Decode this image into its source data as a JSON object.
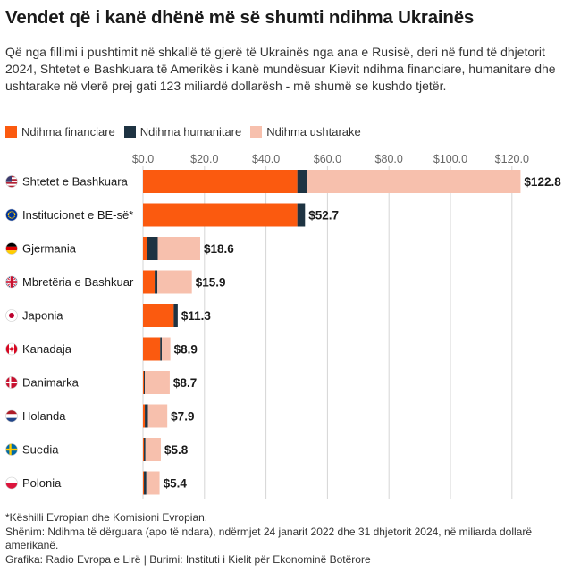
{
  "title": "Vendet që i kanë dhënë më së shumti ndihma Ukrainës",
  "subtitle": "Që nga fillimi i pushtimit në shkallë të gjerë të Ukrainës nga ana e Rusisë, deri në fund të dhjetorit 2024, Shtetet e Bashkuara të Amerikës i kanë mundësuar Kievit ndihma financiare, humanitare dhe ushtarake në vlerë prej gati 123 miliardë dollarësh - më shumë se kushdo tjetër.",
  "footer": {
    "note1": "*Këshilli Evropian dhe Komisioni Evropian.",
    "note2": "Shënim: Ndihma të dërguara (apo të ndara), ndërmjet 24 janarit 2022 dhe 31 dhjetorit 2024, në miliarda dollarë amerikanë.",
    "credit": "Grafika: Radio Evropa e Lirë | Burimi: Instituti i Kielit për Ekonominë Botërore"
  },
  "colors": {
    "financial": "#fb5a0f",
    "humanitarian": "#1e3342",
    "military": "#f7c0ad",
    "grid": "#d5d5d5",
    "text": "#1a1a1a",
    "tick": "#666666"
  },
  "chart_data": {
    "type": "bar",
    "orientation": "horizontal",
    "stacked": true,
    "xlim": [
      0,
      125
    ],
    "ticks": [
      0,
      20,
      40,
      60,
      80,
      100,
      120
    ],
    "tick_labels": [
      "$0.0",
      "$20.0",
      "$40.0",
      "$60.0",
      "$80.0",
      "$100.0",
      "$120.0"
    ],
    "legend": [
      "Ndihma financiare",
      "Ndihma humanitare",
      "Ndihma ushtarake"
    ],
    "legend_position": "top-left",
    "categories": [
      {
        "name": "Shtetet e Bashkuara",
        "flag": "us",
        "total_label": "$122.8"
      },
      {
        "name": "Institucionet e BE-së*",
        "flag": "eu",
        "total_label": "$52.7"
      },
      {
        "name": "Gjermania",
        "flag": "de",
        "total_label": "$18.6"
      },
      {
        "name": "Mbretëria e Bashkuar",
        "flag": "gb",
        "total_label": "$15.9"
      },
      {
        "name": "Japonia",
        "flag": "jp",
        "total_label": "$11.3"
      },
      {
        "name": "Kanadaja",
        "flag": "ca",
        "total_label": "$8.9"
      },
      {
        "name": "Danimarka",
        "flag": "dk",
        "total_label": "$8.7"
      },
      {
        "name": "Holanda",
        "flag": "nl",
        "total_label": "$7.9"
      },
      {
        "name": "Suedia",
        "flag": "se",
        "total_label": "$5.8"
      },
      {
        "name": "Polonia",
        "flag": "pl",
        "total_label": "$5.4"
      }
    ],
    "series": [
      {
        "name": "Ndihma financiare",
        "values": [
          50.2,
          50.2,
          1.4,
          3.8,
          10.0,
          5.6,
          0.3,
          0.6,
          0.3,
          0.3
        ]
      },
      {
        "name": "Ndihma humanitare",
        "values": [
          3.3,
          2.5,
          3.4,
          0.9,
          1.3,
          0.5,
          0.3,
          1.0,
          0.5,
          0.8
        ]
      },
      {
        "name": "Ndihma ushtarake",
        "values": [
          69.3,
          0.0,
          13.8,
          11.2,
          0.0,
          2.8,
          8.1,
          6.3,
          5.0,
          4.3
        ]
      }
    ]
  }
}
